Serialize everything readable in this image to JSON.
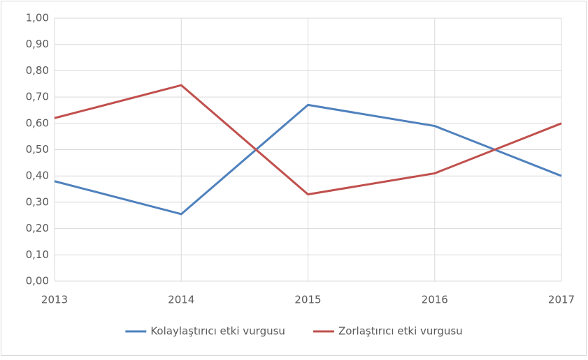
{
  "chart_data": {
    "type": "line",
    "x": [
      2013,
      2014,
      2015,
      2016,
      2017
    ],
    "series": [
      {
        "name": "Kolaylaştırıcı etki vurgusu",
        "color": "#4f81bd",
        "values": [
          0.38,
          0.255,
          0.67,
          0.59,
          0.4
        ]
      },
      {
        "name": "Zorlaştırıcı etki vurgusu",
        "color": "#c0504d",
        "values": [
          0.62,
          0.745,
          0.33,
          0.41,
          0.6
        ]
      }
    ],
    "xlim": [
      2013,
      2017
    ],
    "xticks": [
      2013,
      2014,
      2015,
      2016,
      2017
    ],
    "ylim": [
      0,
      1
    ],
    "yticks": [
      {
        "value": 0,
        "label": "0,00"
      },
      {
        "value": 0.1,
        "label": "0,10"
      },
      {
        "value": 0.2,
        "label": "0,20"
      },
      {
        "value": 0.3,
        "label": "0,30"
      },
      {
        "value": 0.4,
        "label": "0,40"
      },
      {
        "value": 0.5,
        "label": "0,50"
      },
      {
        "value": 0.6,
        "label": "0,60"
      },
      {
        "value": 0.7,
        "label": "0,70"
      },
      {
        "value": 0.8,
        "label": "0,80"
      },
      {
        "value": 0.9,
        "label": "0,90"
      },
      {
        "value": 1,
        "label": "1,00"
      }
    ],
    "grid": true,
    "legend": "bottom"
  }
}
